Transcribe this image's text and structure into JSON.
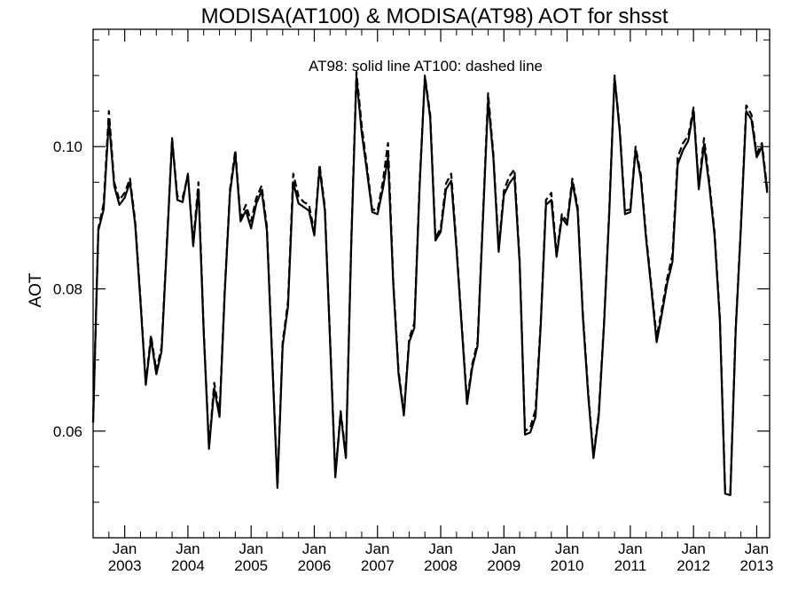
{
  "chart_data": {
    "type": "line",
    "title": "MODISA(AT100) & MODISA(AT98)  AOT for shsst",
    "ylabel": "AOT",
    "xlabel": "",
    "annotation": "AT98: solid line   AT100: dashed line",
    "ylim": [
      0.045,
      0.1165
    ],
    "xlim": [
      "2002-07",
      "2013-01"
    ],
    "grid": false,
    "y_ticks": [
      {
        "value": 0.06,
        "label": "0.06"
      },
      {
        "value": 0.08,
        "label": "0.08"
      },
      {
        "value": 0.1,
        "label": "0.10"
      }
    ],
    "x_ticks": [
      {
        "date": "2003-01",
        "month": "Jan",
        "year": "2003"
      },
      {
        "date": "2004-01",
        "month": "Jan",
        "year": "2004"
      },
      {
        "date": "2005-01",
        "month": "Jan",
        "year": "2005"
      },
      {
        "date": "2006-01",
        "month": "Jan",
        "year": "2006"
      },
      {
        "date": "2007-01",
        "month": "Jan",
        "year": "2007"
      },
      {
        "date": "2008-01",
        "month": "Jan",
        "year": "2008"
      },
      {
        "date": "2009-01",
        "month": "Jan",
        "year": "2009"
      },
      {
        "date": "2010-01",
        "month": "Jan",
        "year": "2010"
      },
      {
        "date": "2011-01",
        "month": "Jan",
        "year": "2011"
      },
      {
        "date": "2012-01",
        "month": "Jan",
        "year": "2012"
      },
      {
        "date": "2013-01",
        "month": "Jan",
        "year": "2013"
      }
    ],
    "series": [
      {
        "style": "solid",
        "color": "#000000",
        "points": [
          [
            "2002-07",
            0.0612
          ],
          [
            "2002-08",
            0.0882
          ],
          [
            "2002-09",
            0.0912
          ],
          [
            "2002-10",
            0.1038
          ],
          [
            "2002-11",
            0.0945
          ],
          [
            "2002-12",
            0.0918
          ],
          [
            "2003-01",
            0.0928
          ],
          [
            "2003-02",
            0.095
          ],
          [
            "2003-03",
            0.089
          ],
          [
            "2003-04",
            0.078
          ],
          [
            "2003-05",
            0.0665
          ],
          [
            "2003-06",
            0.073
          ],
          [
            "2003-07",
            0.068
          ],
          [
            "2003-08",
            0.0712
          ],
          [
            "2003-09",
            0.086
          ],
          [
            "2003-10",
            0.101
          ],
          [
            "2003-11",
            0.0925
          ],
          [
            "2003-12",
            0.0922
          ],
          [
            "2004-01",
            0.0962
          ],
          [
            "2004-02",
            0.086
          ],
          [
            "2004-03",
            0.094
          ],
          [
            "2004-04",
            0.074
          ],
          [
            "2004-05",
            0.0575
          ],
          [
            "2004-06",
            0.066
          ],
          [
            "2004-07",
            0.062
          ],
          [
            "2004-08",
            0.0795
          ],
          [
            "2004-09",
            0.0935
          ],
          [
            "2004-10",
            0.099
          ],
          [
            "2004-11",
            0.0895
          ],
          [
            "2004-12",
            0.091
          ],
          [
            "2005-01",
            0.0885
          ],
          [
            "2005-02",
            0.092
          ],
          [
            "2005-03",
            0.0938
          ],
          [
            "2005-04",
            0.0882
          ],
          [
            "2005-05",
            0.07
          ],
          [
            "2005-06",
            0.052
          ],
          [
            "2005-07",
            0.072
          ],
          [
            "2005-08",
            0.0775
          ],
          [
            "2005-09",
            0.095
          ],
          [
            "2005-10",
            0.092
          ],
          [
            "2005-11",
            0.0915
          ],
          [
            "2005-12",
            0.091
          ],
          [
            "2006-01",
            0.0875
          ],
          [
            "2006-02",
            0.097
          ],
          [
            "2006-03",
            0.091
          ],
          [
            "2006-04",
            0.0725
          ],
          [
            "2006-05",
            0.0535
          ],
          [
            "2006-06",
            0.0625
          ],
          [
            "2006-07",
            0.0562
          ],
          [
            "2006-08",
            0.086
          ],
          [
            "2006-09",
            0.1098
          ],
          [
            "2006-10",
            0.102
          ],
          [
            "2006-11",
            0.0965
          ],
          [
            "2006-12",
            0.0908
          ],
          [
            "2007-01",
            0.0905
          ],
          [
            "2007-02",
            0.094
          ],
          [
            "2007-03",
            0.0985
          ],
          [
            "2007-04",
            0.0805
          ],
          [
            "2007-05",
            0.068
          ],
          [
            "2007-06",
            0.0622
          ],
          [
            "2007-07",
            0.0725
          ],
          [
            "2007-08",
            0.0745
          ],
          [
            "2007-09",
            0.0945
          ],
          [
            "2007-10",
            0.1098
          ],
          [
            "2007-11",
            0.104
          ],
          [
            "2007-12",
            0.0868
          ],
          [
            "2008-01",
            0.088
          ],
          [
            "2008-02",
            0.094
          ],
          [
            "2008-03",
            0.0952
          ],
          [
            "2008-04",
            0.0855
          ],
          [
            "2008-05",
            0.0745
          ],
          [
            "2008-06",
            0.0638
          ],
          [
            "2008-07",
            0.069
          ],
          [
            "2008-08",
            0.072
          ],
          [
            "2008-09",
            0.0895
          ],
          [
            "2008-10",
            0.1065
          ],
          [
            "2008-11",
            0.0985
          ],
          [
            "2008-12",
            0.0852
          ],
          [
            "2009-01",
            0.0932
          ],
          [
            "2009-02",
            0.0948
          ],
          [
            "2009-03",
            0.0958
          ],
          [
            "2009-04",
            0.0835
          ],
          [
            "2009-05",
            0.0595
          ],
          [
            "2009-06",
            0.0598
          ],
          [
            "2009-07",
            0.062
          ],
          [
            "2009-08",
            0.075
          ],
          [
            "2009-09",
            0.0918
          ],
          [
            "2009-10",
            0.0925
          ],
          [
            "2009-11",
            0.0845
          ],
          [
            "2009-12",
            0.09
          ],
          [
            "2010-01",
            0.089
          ],
          [
            "2010-02",
            0.095
          ],
          [
            "2010-03",
            0.091
          ],
          [
            "2010-04",
            0.076
          ],
          [
            "2010-05",
            0.065
          ],
          [
            "2010-06",
            0.0562
          ],
          [
            "2010-07",
            0.062
          ],
          [
            "2010-08",
            0.0748
          ],
          [
            "2010-09",
            0.0905
          ],
          [
            "2010-10",
            0.1098
          ],
          [
            "2010-11",
            0.102
          ],
          [
            "2010-12",
            0.0905
          ],
          [
            "2011-01",
            0.0908
          ],
          [
            "2011-02",
            0.0995
          ],
          [
            "2011-03",
            0.0955
          ],
          [
            "2011-04",
            0.087
          ],
          [
            "2011-05",
            0.08
          ],
          [
            "2011-06",
            0.0725
          ],
          [
            "2011-07",
            0.0765
          ],
          [
            "2011-08",
            0.0808
          ],
          [
            "2011-09",
            0.0838
          ],
          [
            "2011-10",
            0.0975
          ],
          [
            "2011-11",
            0.0995
          ],
          [
            "2011-12",
            0.1008
          ],
          [
            "2012-01",
            0.105
          ],
          [
            "2012-02",
            0.094
          ],
          [
            "2012-03",
            0.1003
          ],
          [
            "2012-04",
            0.0945
          ],
          [
            "2012-05",
            0.0875
          ],
          [
            "2012-06",
            0.0755
          ],
          [
            "2012-07",
            0.0512
          ],
          [
            "2012-08",
            0.051
          ],
          [
            "2012-09",
            0.074
          ],
          [
            "2012-10",
            0.0885
          ],
          [
            "2012-11",
            0.105
          ],
          [
            "2012-12",
            0.1038
          ],
          [
            "2013-01",
            0.0985
          ],
          [
            "2013-02",
            0.1
          ],
          [
            "2013-03",
            0.0935
          ]
        ]
      },
      {
        "style": "dashed",
        "color": "#000000",
        "points": [
          [
            "2002-07",
            0.0612
          ],
          [
            "2002-08",
            0.0885
          ],
          [
            "2002-09",
            0.092
          ],
          [
            "2002-10",
            0.105
          ],
          [
            "2002-11",
            0.095
          ],
          [
            "2002-12",
            0.0925
          ],
          [
            "2003-01",
            0.0935
          ],
          [
            "2003-02",
            0.0955
          ],
          [
            "2003-03",
            0.0895
          ],
          [
            "2003-04",
            0.0785
          ],
          [
            "2003-05",
            0.0668
          ],
          [
            "2003-06",
            0.0735
          ],
          [
            "2003-07",
            0.0685
          ],
          [
            "2003-08",
            0.0718
          ],
          [
            "2003-09",
            0.0865
          ],
          [
            "2003-10",
            0.1012
          ],
          [
            "2003-11",
            0.093
          ],
          [
            "2003-12",
            0.0928
          ],
          [
            "2004-01",
            0.096
          ],
          [
            "2004-02",
            0.0865
          ],
          [
            "2004-03",
            0.095
          ],
          [
            "2004-04",
            0.0745
          ],
          [
            "2004-05",
            0.0578
          ],
          [
            "2004-06",
            0.0668
          ],
          [
            "2004-07",
            0.0625
          ],
          [
            "2004-08",
            0.08
          ],
          [
            "2004-09",
            0.094
          ],
          [
            "2004-10",
            0.0995
          ],
          [
            "2004-11",
            0.09
          ],
          [
            "2004-12",
            0.0918
          ],
          [
            "2005-01",
            0.0895
          ],
          [
            "2005-02",
            0.0928
          ],
          [
            "2005-03",
            0.0945
          ],
          [
            "2005-04",
            0.0888
          ],
          [
            "2005-05",
            0.0705
          ],
          [
            "2005-06",
            0.0522
          ],
          [
            "2005-07",
            0.0725
          ],
          [
            "2005-08",
            0.0782
          ],
          [
            "2005-09",
            0.0962
          ],
          [
            "2005-10",
            0.093
          ],
          [
            "2005-11",
            0.0922
          ],
          [
            "2005-12",
            0.0918
          ],
          [
            "2006-01",
            0.088
          ],
          [
            "2006-02",
            0.0975
          ],
          [
            "2006-03",
            0.0915
          ],
          [
            "2006-04",
            0.073
          ],
          [
            "2006-05",
            0.0538
          ],
          [
            "2006-06",
            0.0628
          ],
          [
            "2006-07",
            0.0565
          ],
          [
            "2006-08",
            0.0865
          ],
          [
            "2006-09",
            0.1105
          ],
          [
            "2006-10",
            0.103
          ],
          [
            "2006-11",
            0.0972
          ],
          [
            "2006-12",
            0.0912
          ],
          [
            "2007-01",
            0.091
          ],
          [
            "2007-02",
            0.095
          ],
          [
            "2007-03",
            0.1005
          ],
          [
            "2007-04",
            0.081
          ],
          [
            "2007-05",
            0.0685
          ],
          [
            "2007-06",
            0.0625
          ],
          [
            "2007-07",
            0.073
          ],
          [
            "2007-08",
            0.0752
          ],
          [
            "2007-09",
            0.095
          ],
          [
            "2007-10",
            0.11
          ],
          [
            "2007-11",
            0.1045
          ],
          [
            "2007-12",
            0.0872
          ],
          [
            "2008-01",
            0.0885
          ],
          [
            "2008-02",
            0.0948
          ],
          [
            "2008-03",
            0.0962
          ],
          [
            "2008-04",
            0.086
          ],
          [
            "2008-05",
            0.075
          ],
          [
            "2008-06",
            0.0642
          ],
          [
            "2008-07",
            0.0695
          ],
          [
            "2008-08",
            0.0725
          ],
          [
            "2008-09",
            0.09
          ],
          [
            "2008-10",
            0.1075
          ],
          [
            "2008-11",
            0.099
          ],
          [
            "2008-12",
            0.0858
          ],
          [
            "2009-01",
            0.0938
          ],
          [
            "2009-02",
            0.0958
          ],
          [
            "2009-03",
            0.0968
          ],
          [
            "2009-04",
            0.084
          ],
          [
            "2009-05",
            0.06
          ],
          [
            "2009-06",
            0.0605
          ],
          [
            "2009-07",
            0.063
          ],
          [
            "2009-08",
            0.0755
          ],
          [
            "2009-09",
            0.0925
          ],
          [
            "2009-10",
            0.0935
          ],
          [
            "2009-11",
            0.085
          ],
          [
            "2009-12",
            0.0905
          ],
          [
            "2010-01",
            0.0895
          ],
          [
            "2010-02",
            0.0955
          ],
          [
            "2010-03",
            0.0915
          ],
          [
            "2010-04",
            0.0765
          ],
          [
            "2010-05",
            0.0655
          ],
          [
            "2010-06",
            0.0565
          ],
          [
            "2010-07",
            0.0625
          ],
          [
            "2010-08",
            0.0752
          ],
          [
            "2010-09",
            0.091
          ],
          [
            "2010-10",
            0.11
          ],
          [
            "2010-11",
            0.1025
          ],
          [
            "2010-12",
            0.091
          ],
          [
            "2011-01",
            0.0912
          ],
          [
            "2011-02",
            0.1
          ],
          [
            "2011-03",
            0.096
          ],
          [
            "2011-04",
            0.0875
          ],
          [
            "2011-05",
            0.0805
          ],
          [
            "2011-06",
            0.0732
          ],
          [
            "2011-07",
            0.0772
          ],
          [
            "2011-08",
            0.0815
          ],
          [
            "2011-09",
            0.0848
          ],
          [
            "2011-10",
            0.0985
          ],
          [
            "2011-11",
            0.1005
          ],
          [
            "2011-12",
            0.1015
          ],
          [
            "2012-01",
            0.1055
          ],
          [
            "2012-02",
            0.0945
          ],
          [
            "2012-03",
            0.1012
          ],
          [
            "2012-04",
            0.095
          ],
          [
            "2012-05",
            0.088
          ],
          [
            "2012-06",
            0.076
          ],
          [
            "2012-07",
            0.0518
          ],
          [
            "2012-08",
            0.0515
          ],
          [
            "2012-09",
            0.0745
          ],
          [
            "2012-10",
            0.089
          ],
          [
            "2012-11",
            0.1058
          ],
          [
            "2012-12",
            0.1045
          ],
          [
            "2013-01",
            0.099
          ],
          [
            "2013-02",
            0.1005
          ],
          [
            "2013-03",
            0.094
          ]
        ]
      }
    ]
  }
}
